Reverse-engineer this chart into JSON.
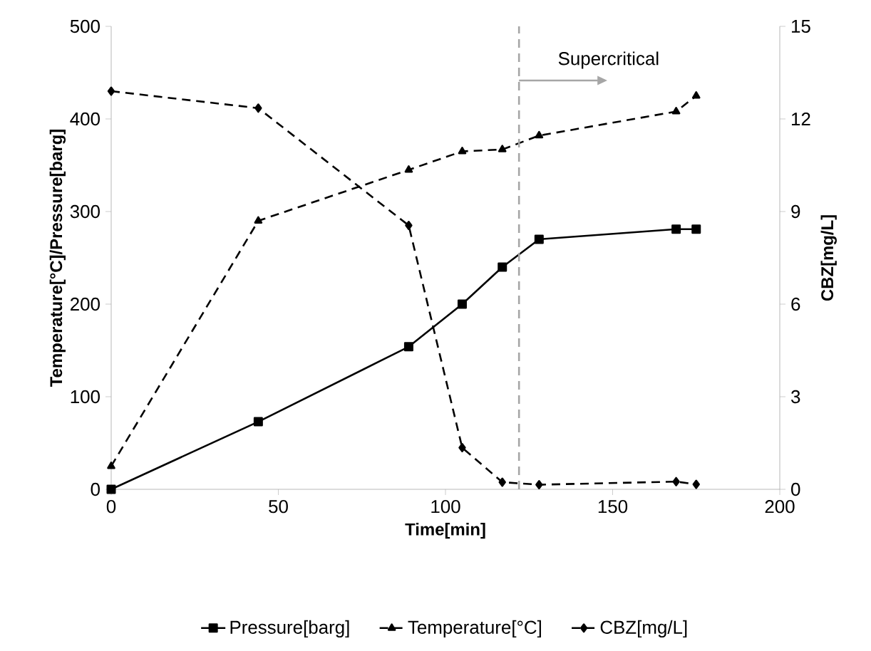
{
  "chart_data": {
    "type": "line",
    "xlabel": "Time[min]",
    "ylabel": "Temperature[°C]/Pressure[barg]",
    "y2label": "CBZ[mg/L]",
    "x": [
      0,
      44,
      89,
      105,
      117,
      128,
      169,
      175
    ],
    "series": [
      {
        "name": "Pressure[barg]",
        "color": "#000000",
        "marker": "square",
        "line_style": "solid",
        "values": [
          0,
          73,
          154,
          200,
          240,
          270,
          281,
          281
        ]
      },
      {
        "name": "Temperature[°C]",
        "color": "#000000",
        "marker": "triangle",
        "line_style": "dashed",
        "values": [
          25,
          290,
          345,
          365,
          367,
          382,
          408,
          425
        ]
      },
      {
        "name": "CBZ[mg/L]",
        "color": "#000000",
        "marker": "diamond",
        "line_style": "dashed",
        "axis": "y2",
        "values": [
          12.9,
          12.35,
          8.55,
          1.35,
          0.23,
          0.15,
          0.25,
          0.16
        ]
      }
    ],
    "xlim": [
      0,
      200
    ],
    "xticks": [
      0,
      50,
      100,
      150,
      200
    ],
    "ylim": [
      0,
      500
    ],
    "yticks": [
      0,
      100,
      200,
      300,
      400,
      500
    ],
    "y2lim": [
      0,
      15
    ],
    "y2ticks": [
      0,
      3,
      6,
      9,
      12,
      15
    ],
    "ref_lines": [
      {
        "axis": "x",
        "value": 122,
        "label": "Supercritical",
        "color": "#a6a6a6",
        "line_style": "dashed"
      }
    ],
    "grid": false,
    "legend": "bottom"
  }
}
